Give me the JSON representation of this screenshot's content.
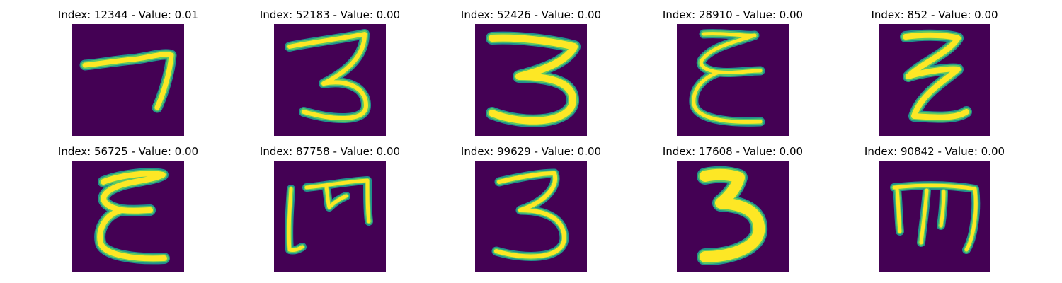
{
  "colors": {
    "background": "#440154",
    "stroke_outer": "#21918c",
    "stroke_mid": "#5ec962",
    "stroke_core": "#fde725"
  },
  "panels": [
    {
      "index": "12344",
      "value": "0.01",
      "title": "Index: 12344 - Value: 0.01",
      "glyph": "seven-like"
    },
    {
      "index": "52183",
      "value": "0.00",
      "title": "Index: 52183 - Value: 0.00",
      "glyph": "three"
    },
    {
      "index": "52426",
      "value": "0.00",
      "title": "Index: 52426 - Value: 0.00",
      "glyph": "three-bold"
    },
    {
      "index": "28910",
      "value": "0.00",
      "title": "Index: 28910 - Value: 0.00",
      "glyph": "epsilon"
    },
    {
      "index": "852",
      "value": "0.00",
      "title": "Index: 852 - Value: 0.00",
      "glyph": "z-like"
    },
    {
      "index": "56725",
      "value": "0.00",
      "title": "Index: 56725 - Value: 0.00",
      "glyph": "epsilon"
    },
    {
      "index": "87758",
      "value": "0.00",
      "title": "Index: 87758 - Value: 0.00",
      "glyph": "m-like"
    },
    {
      "index": "99629",
      "value": "0.00",
      "title": "Index: 99629 - Value: 0.00",
      "glyph": "three"
    },
    {
      "index": "17608",
      "value": "0.00",
      "title": "Index: 17608 - Value: 0.00",
      "glyph": "three-bold"
    },
    {
      "index": "90842",
      "value": "0.00",
      "title": "Index: 90842 - Value: 0.00",
      "glyph": "m-like"
    }
  ]
}
